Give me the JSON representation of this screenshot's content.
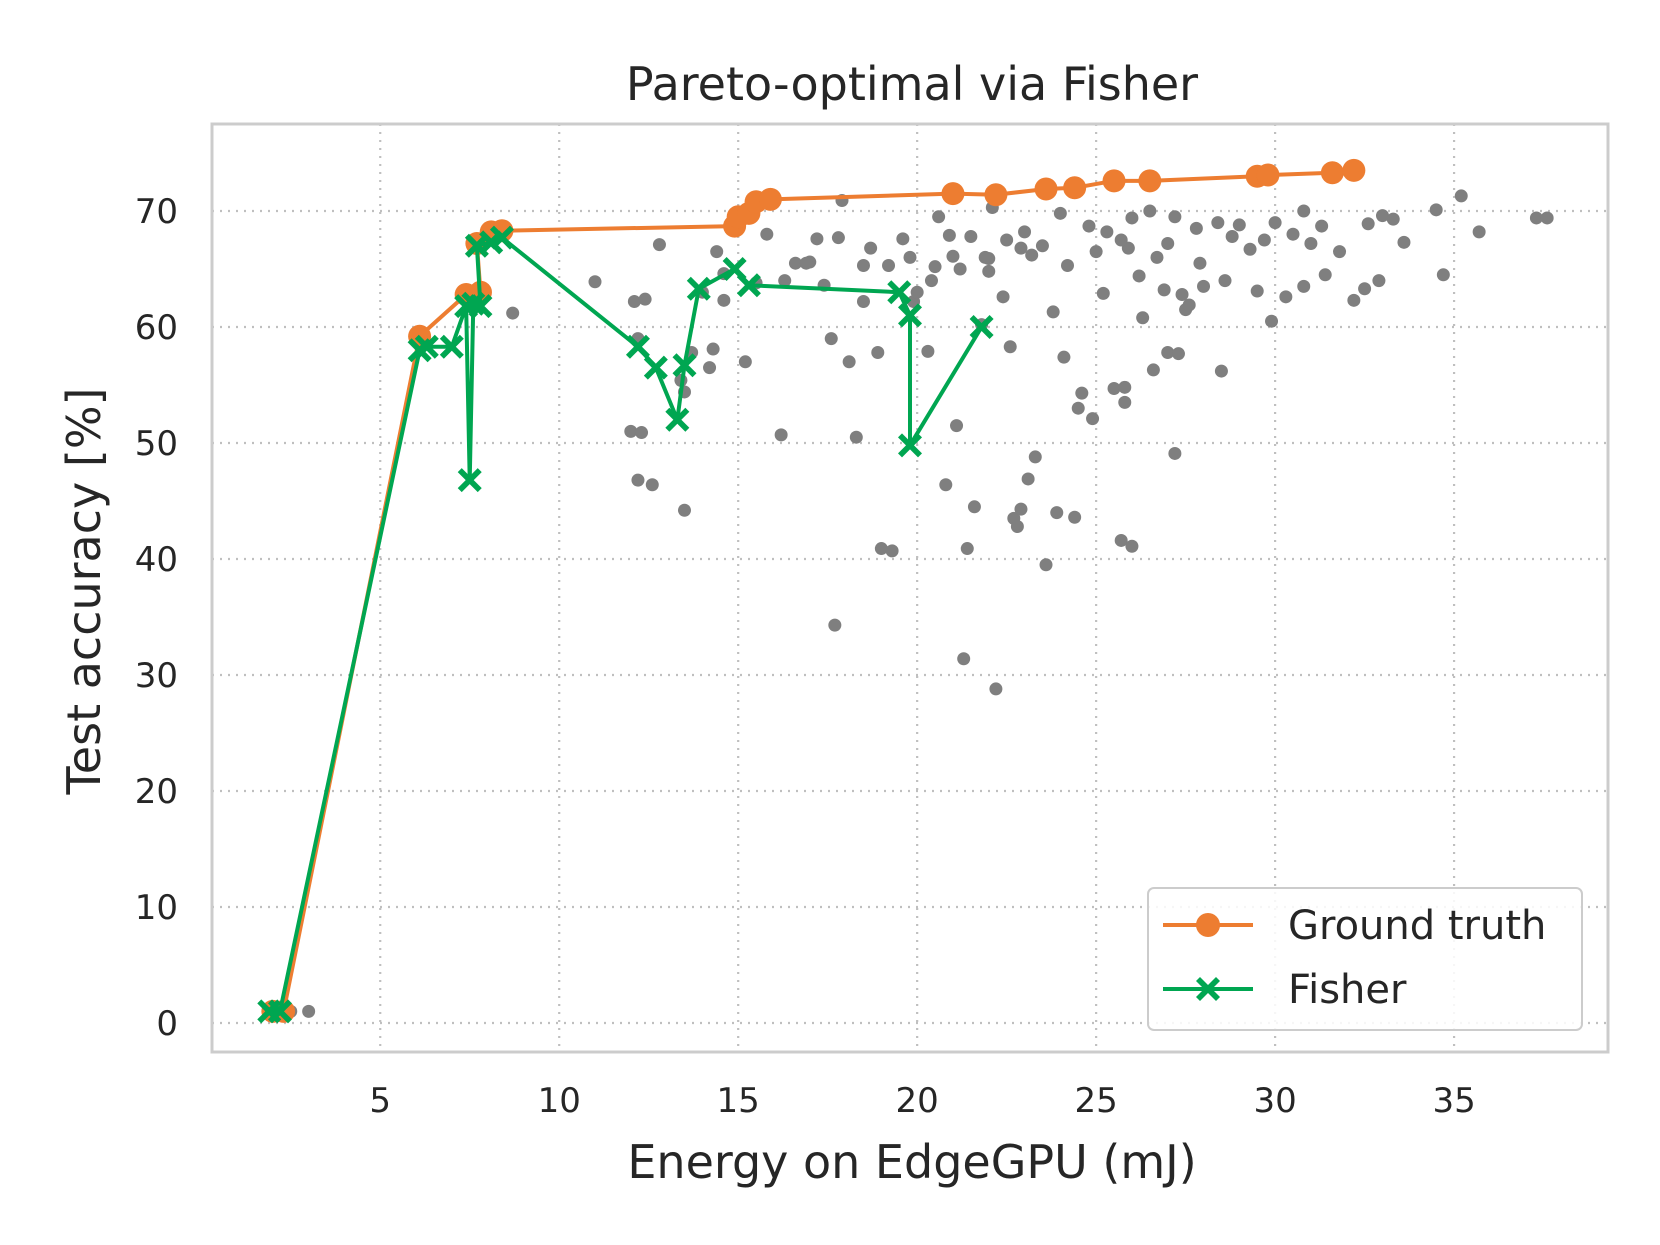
{
  "chart_data": {
    "type": "scatter",
    "title": "Pareto-optimal via Fisher",
    "xlabel": "Energy on EdgeGPU (mJ)",
    "ylabel": "Test accuracy [%]",
    "xlim": [
      0.3,
      39.3
    ],
    "ylim": [
      -2.5,
      77.5
    ],
    "xticks": [
      5,
      10,
      15,
      20,
      25,
      30,
      35
    ],
    "yticks": [
      0,
      10,
      20,
      30,
      40,
      50,
      60,
      70
    ],
    "grid": true,
    "grid_style": "dotted",
    "legend_position": "lower-right",
    "colors": {
      "ground_truth": "#ed7d31",
      "fisher": "#00a651",
      "background": "#7f7f7f",
      "grid": "#bfbfbf",
      "frame": "#cccccc"
    },
    "series": [
      {
        "name": "Ground truth",
        "marker": "circle",
        "points": [
          [
            2.0,
            1.0
          ],
          [
            2.3,
            1.0
          ],
          [
            6.1,
            59.2
          ],
          [
            7.4,
            62.8
          ],
          [
            7.8,
            63.0
          ],
          [
            7.7,
            67.2
          ],
          [
            8.1,
            68.2
          ],
          [
            8.4,
            68.3
          ],
          [
            14.9,
            68.7
          ],
          [
            15.0,
            69.5
          ],
          [
            15.3,
            69.8
          ],
          [
            15.5,
            70.8
          ],
          [
            15.9,
            71.0
          ],
          [
            21.0,
            71.5
          ],
          [
            22.2,
            71.4
          ],
          [
            23.6,
            71.9
          ],
          [
            24.4,
            72.0
          ],
          [
            25.5,
            72.6
          ],
          [
            26.5,
            72.6
          ],
          [
            29.5,
            73.0
          ],
          [
            29.8,
            73.1
          ],
          [
            31.6,
            73.3
          ],
          [
            32.2,
            73.5
          ]
        ]
      },
      {
        "name": "Fisher",
        "marker": "x",
        "points": [
          [
            1.9,
            1.0
          ],
          [
            2.2,
            1.0
          ],
          [
            6.1,
            58.0
          ],
          [
            6.3,
            58.3
          ],
          [
            7.0,
            58.3
          ],
          [
            7.4,
            61.8
          ],
          [
            7.5,
            46.8
          ],
          [
            7.6,
            62.0
          ],
          [
            7.8,
            61.8
          ],
          [
            7.7,
            67.0
          ],
          [
            8.1,
            67.3
          ],
          [
            8.4,
            67.7
          ],
          [
            12.2,
            58.3
          ],
          [
            12.7,
            56.5
          ],
          [
            13.3,
            52.0
          ],
          [
            13.5,
            56.7
          ],
          [
            13.9,
            63.3
          ],
          [
            14.9,
            65.0
          ],
          [
            15.3,
            63.6
          ],
          [
            19.5,
            63.0
          ],
          [
            19.8,
            61.0
          ],
          [
            19.8,
            49.8
          ],
          [
            21.8,
            60.0
          ]
        ]
      }
    ],
    "background_points": [
      [
        2.5,
        1.0
      ],
      [
        3.0,
        1.0
      ],
      [
        8.7,
        61.2
      ],
      [
        11.0,
        63.9
      ],
      [
        12.0,
        51.0
      ],
      [
        12.2,
        46.8
      ],
      [
        12.3,
        50.9
      ],
      [
        12.6,
        46.4
      ],
      [
        12.8,
        67.1
      ],
      [
        12.1,
        62.2
      ],
      [
        12.4,
        62.4
      ],
      [
        13.5,
        44.2
      ],
      [
        13.5,
        54.4
      ],
      [
        13.7,
        57.8
      ],
      [
        14.2,
        56.5
      ],
      [
        14.3,
        58.1
      ],
      [
        14.4,
        66.5
      ],
      [
        14.6,
        62.3
      ],
      [
        15.2,
        57.0
      ],
      [
        15.8,
        68.0
      ],
      [
        16.2,
        50.7
      ],
      [
        16.6,
        65.5
      ],
      [
        17.0,
        65.6
      ],
      [
        17.2,
        67.6
      ],
      [
        17.4,
        63.6
      ],
      [
        17.6,
        59.0
      ],
      [
        17.7,
        34.3
      ],
      [
        17.9,
        70.9
      ],
      [
        18.1,
        57.0
      ],
      [
        18.3,
        50.5
      ],
      [
        18.5,
        62.2
      ],
      [
        18.9,
        57.8
      ],
      [
        19.2,
        65.3
      ],
      [
        19.0,
        40.9
      ],
      [
        19.3,
        40.7
      ],
      [
        19.6,
        67.6
      ],
      [
        19.9,
        62.2
      ],
      [
        20.3,
        57.9
      ],
      [
        20.4,
        64.0
      ],
      [
        20.6,
        69.5
      ],
      [
        20.8,
        46.4
      ],
      [
        21.0,
        66.1
      ],
      [
        21.1,
        51.5
      ],
      [
        21.3,
        31.4
      ],
      [
        21.4,
        40.9
      ],
      [
        21.6,
        44.5
      ],
      [
        21.8,
        60.2
      ],
      [
        22.0,
        65.9
      ],
      [
        22.1,
        70.3
      ],
      [
        22.2,
        28.8
      ],
      [
        22.4,
        62.6
      ],
      [
        22.6,
        58.3
      ],
      [
        22.7,
        43.5
      ],
      [
        22.8,
        42.8
      ],
      [
        22.9,
        44.3
      ],
      [
        23.1,
        46.9
      ],
      [
        23.3,
        48.8
      ],
      [
        23.6,
        39.5
      ],
      [
        23.8,
        61.3
      ],
      [
        23.9,
        44.0
      ],
      [
        24.1,
        57.4
      ],
      [
        24.4,
        43.6
      ],
      [
        24.6,
        54.3
      ],
      [
        24.5,
        53.0
      ],
      [
        24.9,
        52.1
      ],
      [
        25.2,
        62.9
      ],
      [
        25.5,
        54.7
      ],
      [
        25.8,
        54.8
      ],
      [
        25.8,
        53.5
      ],
      [
        25.7,
        41.6
      ],
      [
        26.0,
        41.1
      ],
      [
        26.3,
        60.8
      ],
      [
        26.6,
        56.3
      ],
      [
        27.0,
        57.8
      ],
      [
        27.2,
        49.1
      ],
      [
        27.3,
        57.7
      ],
      [
        28.5,
        56.2
      ],
      [
        29.5,
        63.1
      ],
      [
        29.9,
        60.5
      ],
      [
        30.3,
        62.6
      ],
      [
        30.8,
        63.5
      ],
      [
        31.4,
        64.5
      ],
      [
        32.2,
        62.3
      ],
      [
        32.5,
        63.3
      ],
      [
        33.6,
        67.3
      ],
      [
        34.5,
        70.1
      ],
      [
        34.7,
        64.5
      ],
      [
        35.2,
        71.3
      ],
      [
        35.7,
        68.2
      ],
      [
        37.3,
        69.4
      ],
      [
        37.6,
        69.4
      ],
      [
        26.5,
        70.0
      ],
      [
        27.2,
        69.5
      ],
      [
        27.8,
        68.5
      ],
      [
        28.4,
        69.0
      ],
      [
        29.0,
        68.8
      ],
      [
        23.5,
        67.0
      ],
      [
        24.2,
        65.3
      ],
      [
        25.0,
        66.5
      ],
      [
        22.5,
        67.5
      ],
      [
        21.5,
        67.8
      ],
      [
        20.9,
        67.9
      ],
      [
        27.5,
        61.5
      ],
      [
        27.6,
        61.9
      ],
      [
        27.4,
        62.8
      ],
      [
        28.0,
        63.5
      ],
      [
        26.9,
        63.2
      ],
      [
        26.2,
        64.4
      ],
      [
        25.9,
        66.8
      ],
      [
        24.8,
        68.7
      ],
      [
        23.0,
        68.2
      ],
      [
        30.0,
        69.0
      ],
      [
        30.5,
        68.0
      ],
      [
        31.0,
        67.2
      ],
      [
        31.8,
        66.5
      ],
      [
        32.9,
        64.0
      ],
      [
        33.0,
        69.6
      ],
      [
        28.8,
        67.8
      ],
      [
        29.3,
        66.7
      ],
      [
        27.0,
        67.2
      ],
      [
        26.0,
        69.4
      ],
      [
        24.0,
        69.8
      ],
      [
        22.9,
        66.8
      ],
      [
        21.9,
        66.0
      ],
      [
        20.5,
        65.2
      ],
      [
        19.8,
        66.0
      ],
      [
        18.7,
        66.8
      ],
      [
        17.8,
        67.7
      ],
      [
        16.9,
        65.5
      ],
      [
        16.3,
        64.0
      ],
      [
        15.5,
        63.8
      ],
      [
        14.6,
        64.6
      ],
      [
        14.0,
        63.0
      ],
      [
        13.4,
        55.4
      ],
      [
        12.2,
        59.0
      ],
      [
        25.3,
        68.2
      ],
      [
        25.7,
        67.5
      ],
      [
        26.7,
        66.0
      ],
      [
        27.9,
        65.5
      ],
      [
        28.6,
        64.0
      ],
      [
        29.7,
        67.5
      ],
      [
        30.8,
        70.0
      ],
      [
        31.3,
        68.7
      ],
      [
        32.6,
        68.9
      ],
      [
        33.3,
        69.3
      ],
      [
        23.2,
        66.2
      ],
      [
        22.0,
        64.8
      ],
      [
        21.2,
        65.0
      ],
      [
        20.0,
        63.0
      ],
      [
        18.5,
        65.3
      ]
    ]
  }
}
